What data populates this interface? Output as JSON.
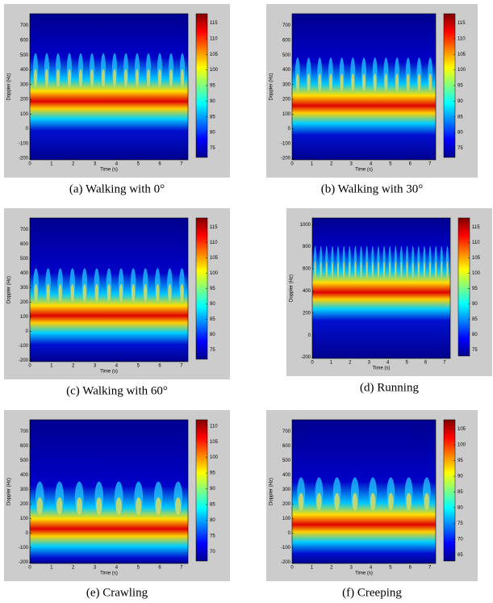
{
  "chart_data": [
    {
      "type": "spectrogram",
      "caption": "(a) Walking with 0°",
      "xlabel": "Time (s)",
      "ylabel": "Doppler (Hz)",
      "xlim": [
        0,
        7.3
      ],
      "xticks": [
        0,
        1,
        2,
        3,
        4,
        5,
        6,
        7
      ],
      "ylim": [
        -210,
        780
      ],
      "yticks": [
        -200,
        -100,
        0,
        100,
        200,
        300,
        400,
        500,
        600,
        700
      ],
      "colorbar_lim": [
        72,
        118
      ],
      "colorbar_ticks": [
        75,
        80,
        85,
        90,
        95,
        100,
        105,
        110,
        115
      ]
    },
    {
      "type": "spectrogram",
      "caption": "(b) Walking with 30°",
      "xlabel": "Time (s)",
      "ylabel": "Doppler (Hz)",
      "xlim": [
        0,
        7.3
      ],
      "xticks": [
        0,
        1,
        2,
        3,
        4,
        5,
        6,
        7
      ],
      "ylim": [
        -210,
        780
      ],
      "yticks": [
        -200,
        -100,
        0,
        100,
        200,
        300,
        400,
        500,
        600,
        700
      ],
      "colorbar_lim": [
        72,
        118
      ],
      "colorbar_ticks": [
        75,
        80,
        85,
        90,
        95,
        100,
        105,
        110,
        115
      ]
    },
    {
      "type": "spectrogram",
      "caption": "(c) Walking with 60°",
      "xlabel": "Time (s)",
      "ylabel": "Doppler (Hz)",
      "xlim": [
        0,
        7.3
      ],
      "xticks": [
        0,
        1,
        2,
        3,
        4,
        5,
        6,
        7
      ],
      "ylim": [
        -210,
        780
      ],
      "yticks": [
        -200,
        -100,
        0,
        100,
        200,
        300,
        400,
        500,
        600,
        700
      ],
      "colorbar_lim": [
        72,
        118
      ],
      "colorbar_ticks": [
        75,
        80,
        85,
        90,
        95,
        100,
        105,
        110,
        115
      ]
    },
    {
      "type": "spectrogram",
      "caption": "(d) Running",
      "xlabel": "Time (s)",
      "ylabel": "Doppler (Hz)",
      "xlim": [
        0,
        7.3
      ],
      "xticks": [
        0,
        1,
        2,
        3,
        4,
        5,
        6,
        7
      ],
      "ylim": [
        -210,
        1060
      ],
      "yticks": [
        -200,
        0,
        200,
        400,
        600,
        800,
        1000
      ],
      "colorbar_lim": [
        73,
        118
      ],
      "colorbar_ticks": [
        75,
        80,
        85,
        90,
        95,
        100,
        105,
        110,
        115
      ]
    },
    {
      "type": "spectrogram",
      "caption": "(e) Crawling",
      "xlabel": "Time (s)",
      "ylabel": "Doppler (Hz)",
      "xlim": [
        0,
        7.3
      ],
      "xticks": [
        0,
        1,
        2,
        3,
        4,
        5,
        6,
        7
      ],
      "ylim": [
        -210,
        780
      ],
      "yticks": [
        -200,
        -100,
        0,
        100,
        200,
        300,
        400,
        500,
        600,
        700
      ],
      "colorbar_lim": [
        67,
        112
      ],
      "colorbar_ticks": [
        70,
        75,
        80,
        85,
        90,
        95,
        100,
        105,
        110
      ]
    },
    {
      "type": "spectrogram",
      "caption": "(f) Creeping",
      "xlabel": "Time (s)",
      "ylabel": "Doppler (Hz)",
      "xlim": [
        0,
        7.3
      ],
      "xticks": [
        0,
        1,
        2,
        3,
        4,
        5,
        6,
        7
      ],
      "ylim": [
        -210,
        780
      ],
      "yticks": [
        -200,
        -100,
        0,
        100,
        200,
        300,
        400,
        500,
        600,
        700
      ],
      "colorbar_lim": [
        63,
        108
      ],
      "colorbar_ticks": [
        65,
        70,
        75,
        80,
        85,
        90,
        95,
        100,
        105
      ]
    }
  ]
}
